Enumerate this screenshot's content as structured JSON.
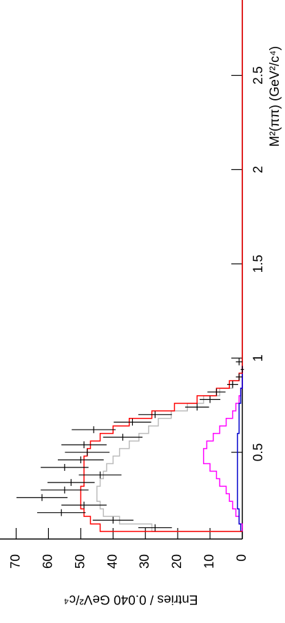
{
  "chart_data": {
    "type": "histogram",
    "xlabel": "M²(ππ) (GeV²/c⁴)",
    "ylabel": "Entries / 0.040 GeV²/c⁴",
    "xlim": [
      0.04,
      2.9
    ],
    "ylim": [
      0,
      75
    ],
    "xticks": [
      0.5,
      1,
      1.5,
      2,
      2.5
    ],
    "yticks": [
      0,
      10,
      20,
      30,
      40,
      50,
      60,
      70
    ],
    "points": {
      "color": "#000000",
      "x": [
        0.1,
        0.14,
        0.18,
        0.22,
        0.26,
        0.3,
        0.34,
        0.38,
        0.42,
        0.46,
        0.5,
        0.54,
        0.58,
        0.62,
        0.66,
        0.7,
        0.74,
        0.78,
        0.82,
        0.86,
        0.9,
        0.94,
        0.98
      ],
      "values": [
        27,
        40,
        56,
        49,
        62,
        55,
        53,
        44,
        55,
        50,
        48,
        49,
        37,
        46,
        34,
        27,
        14,
        10,
        8,
        3,
        1,
        0,
        1
      ],
      "errors": [
        5.2,
        6.3,
        7.5,
        7,
        7.9,
        7.4,
        7.3,
        6.6,
        7.4,
        7.1,
        6.9,
        7,
        6.1,
        6.8,
        5.8,
        5.2,
        3.7,
        3.2,
        2.8,
        1.7,
        1,
        0.5,
        1
      ]
    },
    "bins": [
      0.08,
      0.12,
      0.16,
      0.2,
      0.24,
      0.28,
      0.32,
      0.36,
      0.4,
      0.44,
      0.48,
      0.52,
      0.56,
      0.6,
      0.64,
      0.68,
      0.72,
      0.76,
      0.8,
      0.84,
      0.88,
      0.92,
      0.96
    ],
    "series": [
      {
        "color": "#bbbbbb",
        "values": [
          28,
          38,
          43,
          44,
          45,
          45,
          44,
          43,
          42,
          40,
          38,
          35,
          32,
          29,
          26,
          22,
          17,
          12,
          7,
          3,
          1,
          0
        ]
      },
      {
        "color": "#ff00ff",
        "values": [
          0,
          1,
          2,
          3,
          4,
          5,
          7,
          8,
          10,
          12,
          12,
          11,
          9,
          7,
          5,
          3,
          2,
          1,
          0.5,
          0,
          0,
          0
        ]
      },
      {
        "color": "#0000cc",
        "values": [
          0.5,
          1,
          1,
          1.5,
          1.5,
          1.5,
          1.5,
          1.5,
          1.5,
          1.5,
          1.5,
          1.5,
          1.5,
          1,
          1,
          1,
          1,
          0.5,
          0.5,
          0,
          0,
          0
        ]
      },
      {
        "color": "#ff0000",
        "values": [
          44,
          47,
          49,
          50,
          50,
          50,
          49,
          49,
          49,
          49,
          48,
          47,
          44,
          40,
          35,
          28,
          21,
          14,
          8,
          4,
          1,
          0
        ]
      }
    ]
  }
}
